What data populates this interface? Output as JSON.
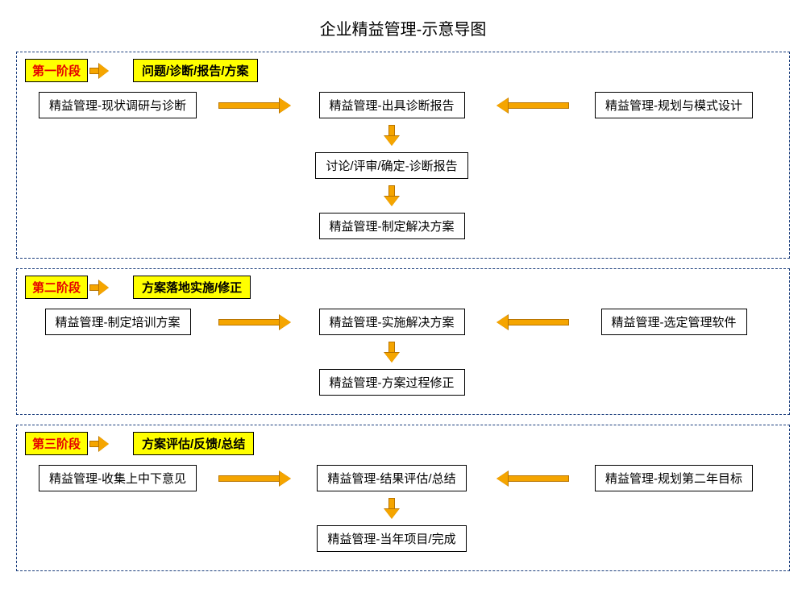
{
  "title": "企业精益管理-示意导图",
  "colors": {
    "stage_border": "#1a3d7c",
    "highlight_bg": "#ffff00",
    "stage_label_text": "#e60000",
    "arrow_fill": "#f5a500",
    "arrow_border": "#b87400",
    "node_border": "#000000",
    "background": "#ffffff"
  },
  "type": "flowchart",
  "stages": [
    {
      "label": "第一阶段",
      "desc": "问题/诊断/报告/方案",
      "row1": {
        "left": "精益管理-现状调研与诊断",
        "mid": "精益管理-出具诊断报告",
        "right": "精益管理-规划与模式设计"
      },
      "down": [
        "讨论/评审/确定-诊断报告",
        "精益管理-制定解决方案"
      ]
    },
    {
      "label": "第二阶段",
      "desc": "方案落地实施/修正",
      "row1": {
        "left": "精益管理-制定培训方案",
        "mid": "精益管理-实施解决方案",
        "right": "精益管理-选定管理软件"
      },
      "down": [
        "精益管理-方案过程修正"
      ]
    },
    {
      "label": "第三阶段",
      "desc": "方案评估/反馈/总结",
      "row1": {
        "left": "精益管理-收集上中下意见",
        "mid": "精益管理-结果评估/总结",
        "right": "精益管理-规划第二年目标"
      },
      "down": [
        "精益管理-当年项目/完成"
      ]
    }
  ]
}
